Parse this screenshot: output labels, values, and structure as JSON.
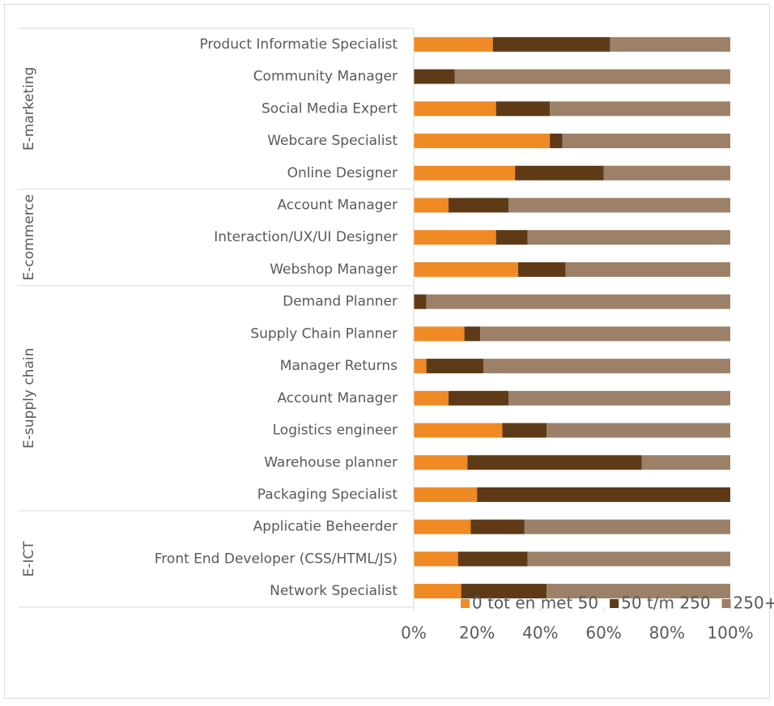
{
  "chart_data": {
    "type": "stacked_barh",
    "groups": [
      {
        "name": "E-marketing",
        "categories": [
          "Product Informatie Specialist",
          "Community Manager",
          "Social Media Expert",
          "Webcare Specialist",
          "Online Designer"
        ]
      },
      {
        "name": "E-commerce",
        "categories": [
          "Account Manager",
          "Interaction/UX/UI Designer",
          "Webshop Manager"
        ]
      },
      {
        "name": "E-supply chain",
        "categories": [
          "Demand Planner",
          "Supply Chain Planner",
          "Manager Returns",
          "Account Manager",
          "Logistics engineer",
          "Warehouse planner",
          "Packaging Specialist"
        ]
      },
      {
        "name": "E-ICT",
        "categories": [
          "Applicatie Beheerder",
          "Front End Developer (CSS/HTML/JS)",
          "Network Specialist"
        ]
      }
    ],
    "series": [
      {
        "name": "0 tot en met 50",
        "color": "#f08a24",
        "values": [
          25,
          0,
          26,
          43,
          32,
          11,
          26,
          33,
          0,
          16,
          4,
          11,
          28,
          17,
          20,
          18,
          14,
          15
        ]
      },
      {
        "name": "50 t/m 250",
        "color": "#5e3a17",
        "values": [
          37,
          13,
          17,
          4,
          28,
          19,
          10,
          15,
          4,
          5,
          18,
          19,
          14,
          55,
          80,
          17,
          22,
          27
        ]
      },
      {
        "name": "250+",
        "color": "#9c8067",
        "values": [
          38,
          87,
          57,
          53,
          40,
          70,
          64,
          52,
          96,
          79,
          78,
          70,
          58,
          28,
          0,
          65,
          64,
          58
        ]
      }
    ],
    "xlim": [
      0,
      100
    ],
    "xticks": [
      {
        "value": 0,
        "label": "0%"
      },
      {
        "value": 20,
        "label": "20%"
      },
      {
        "value": 40,
        "label": "40%"
      },
      {
        "value": 60,
        "label": "60%"
      },
      {
        "value": 80,
        "label": "80%"
      },
      {
        "value": 100,
        "label": "100%"
      }
    ],
    "legend": "bottom"
  }
}
